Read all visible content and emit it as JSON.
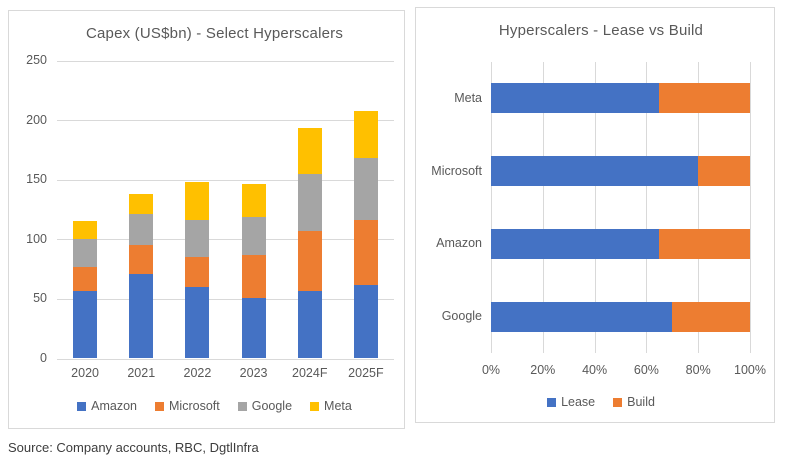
{
  "source_note": "Source: Company accounts, RBC, DgtlInfra",
  "colors": {
    "blue": "#4472C4",
    "orange": "#ED7D31",
    "gray": "#A5A5A5",
    "yellow": "#FFC000",
    "grid": "#D9D9D9",
    "chart_text": "#595959"
  },
  "chart_data": [
    {
      "type": "bar",
      "stacked": true,
      "orientation": "vertical",
      "title": "Capex (US$bn) - Select Hyperscalers",
      "categories": [
        "2020",
        "2021",
        "2022",
        "2023",
        "2024F",
        "2025F"
      ],
      "series": [
        {
          "name": "Amazon",
          "color": "#4472C4",
          "values": [
            57,
            71,
            60,
            51,
            57,
            62
          ]
        },
        {
          "name": "Microsoft",
          "color": "#ED7D31",
          "values": [
            20,
            24,
            25,
            36,
            50,
            54
          ]
        },
        {
          "name": "Google",
          "color": "#A5A5A5",
          "values": [
            23,
            26,
            31,
            32,
            48,
            52
          ]
        },
        {
          "name": "Meta",
          "color": "#FFC000",
          "values": [
            15,
            17,
            32,
            27,
            38,
            40
          ]
        }
      ],
      "xlabel": "",
      "ylabel": "",
      "ylim": [
        0,
        250
      ],
      "yticks": [
        0,
        50,
        100,
        150,
        200,
        250
      ],
      "grid": true,
      "legend_position": "bottom",
      "legend": [
        "Amazon",
        "Microsoft",
        "Google",
        "Meta"
      ]
    },
    {
      "type": "bar",
      "stacked": true,
      "orientation": "horizontal",
      "title": "Hyperscalers - Lease vs Build",
      "categories": [
        "Meta",
        "Microsoft",
        "Amazon",
        "Google"
      ],
      "series": [
        {
          "name": "Lease",
          "color": "#4472C4",
          "values": [
            65,
            80,
            65,
            70
          ]
        },
        {
          "name": "Build",
          "color": "#ED7D31",
          "values": [
            35,
            20,
            35,
            30
          ]
        }
      ],
      "xlabel": "",
      "ylabel": "",
      "xlim": [
        0,
        100
      ],
      "xticks": [
        "0%",
        "20%",
        "40%",
        "60%",
        "80%",
        "100%"
      ],
      "grid": true,
      "legend_position": "bottom",
      "legend": [
        "Lease",
        "Build"
      ]
    }
  ]
}
